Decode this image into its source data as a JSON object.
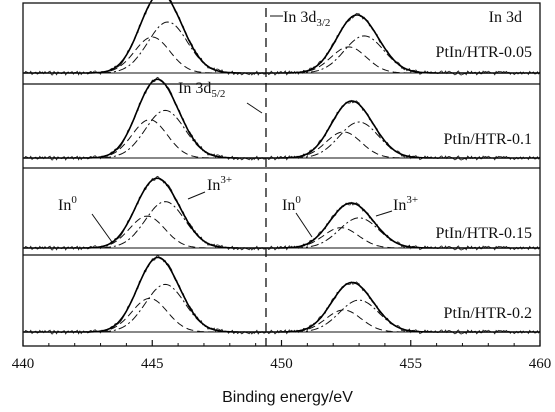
{
  "chart_data": {
    "type": "line",
    "title": "",
    "xlabel": "Binding energy/eV",
    "ylabel": "",
    "xlim": [
      440,
      460
    ],
    "x_ticks": [
      440,
      445,
      450,
      455,
      460
    ],
    "x_tick_labels": [
      "440",
      "445",
      "450",
      "455",
      "460"
    ],
    "reference_line_x": 449.4,
    "grid": false,
    "annotations": {
      "in3d": "In 3d",
      "in3d32_main": "In 3d",
      "in3d32_sub": "3/2",
      "in3d52_main": "In 3d",
      "in3d52_sub": "5/2",
      "in0_left_main": "In",
      "in0_left_sup": "0",
      "in3_left_main": "In",
      "in3_left_sup": "3+",
      "in0_right_main": "In",
      "in0_right_sup": "0",
      "in3_right_main": "In",
      "in3_right_sup": "3+"
    },
    "series": [
      {
        "name": "PtIn/HTR-0.05",
        "peaks_3d52": {
          "in0": {
            "center": 445.0,
            "height": 0.62,
            "fwhm": 1.6
          },
          "in3": {
            "center": 445.6,
            "height": 0.88,
            "fwhm": 1.8
          }
        },
        "peaks_3d32": {
          "in0": {
            "center": 452.6,
            "height": 0.45,
            "fwhm": 1.6
          },
          "in3": {
            "center": 453.2,
            "height": 0.64,
            "fwhm": 1.8
          }
        }
      },
      {
        "name": "PtIn/HTR-0.1",
        "peaks_3d52": {
          "in0": {
            "center": 444.9,
            "height": 0.66,
            "fwhm": 1.6
          },
          "in3": {
            "center": 445.5,
            "height": 0.82,
            "fwhm": 1.8
          }
        },
        "peaks_3d32": {
          "in0": {
            "center": 452.4,
            "height": 0.45,
            "fwhm": 1.6
          },
          "in3": {
            "center": 453.0,
            "height": 0.62,
            "fwhm": 1.8
          }
        }
      },
      {
        "name": "PtIn/HTR-0.15",
        "peaks_3d52": {
          "in0": {
            "center": 444.8,
            "height": 0.55,
            "fwhm": 1.6
          },
          "in3": {
            "center": 445.5,
            "height": 0.8,
            "fwhm": 1.8
          }
        },
        "peaks_3d32": {
          "in0": {
            "center": 452.3,
            "height": 0.35,
            "fwhm": 1.6
          },
          "in3": {
            "center": 453.0,
            "height": 0.52,
            "fwhm": 1.8
          }
        }
      },
      {
        "name": "PtIn/HTR-0.2",
        "peaks_3d52": {
          "in0": {
            "center": 444.9,
            "height": 0.58,
            "fwhm": 1.6
          },
          "in3": {
            "center": 445.5,
            "height": 0.82,
            "fwhm": 1.8
          }
        },
        "peaks_3d32": {
          "in0": {
            "center": 452.4,
            "height": 0.38,
            "fwhm": 1.6
          },
          "in3": {
            "center": 453.0,
            "height": 0.55,
            "fwhm": 1.8
          }
        }
      }
    ]
  }
}
